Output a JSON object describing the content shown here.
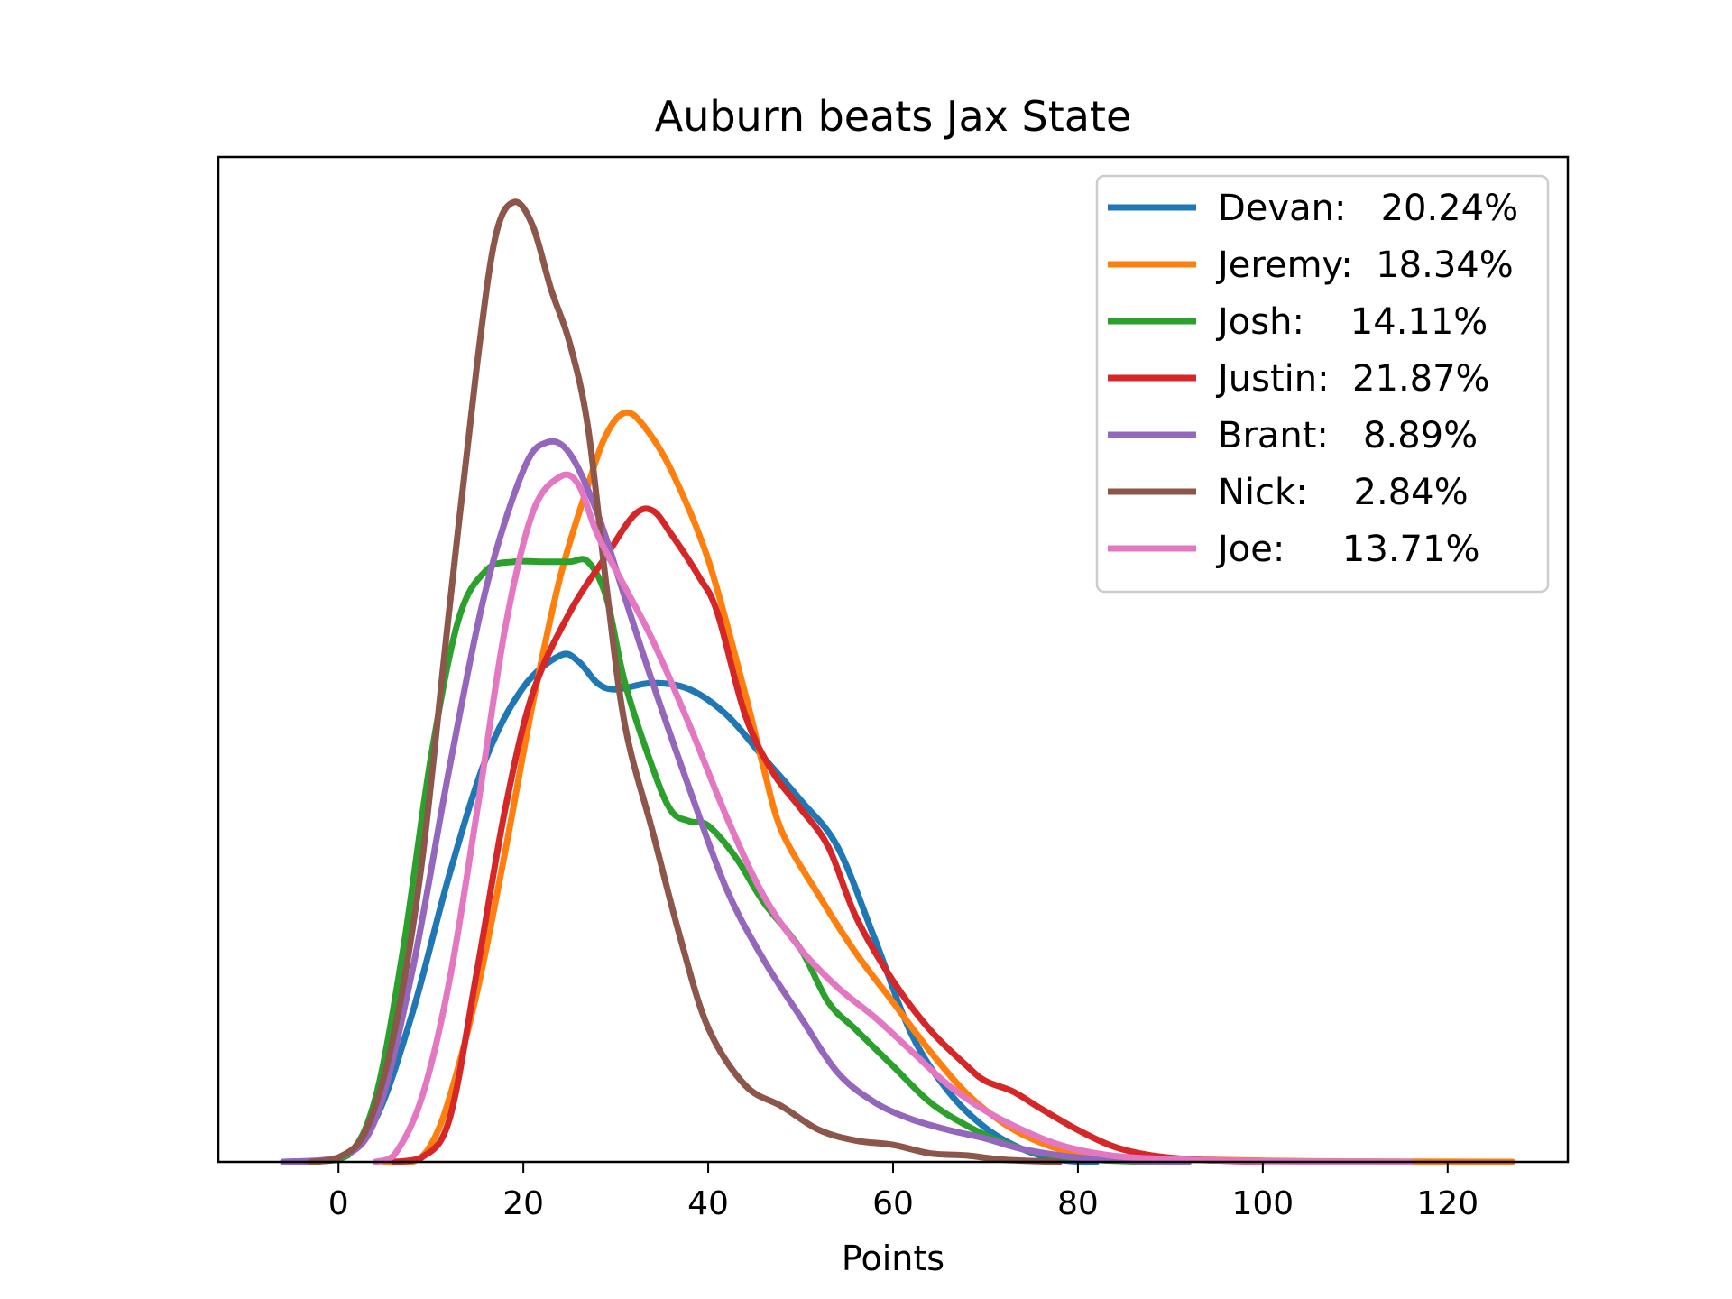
{
  "chart_data": {
    "type": "line",
    "title": "Auburn beats Jax State",
    "xlabel": "Points",
    "ylabel": "",
    "xlim": [
      -13,
      133
    ],
    "ylim": [
      0,
      0.0451
    ],
    "x_ticks": [
      0,
      20,
      40,
      60,
      80,
      100,
      120
    ],
    "y_ticks_visible": false,
    "grid": false,
    "legend_position": "top-right",
    "series": [
      {
        "name": "Devan:   20.24%",
        "color": "#1f77b4",
        "points": [
          [
            -6,
            0
          ],
          [
            0,
            0.0001
          ],
          [
            4,
            0.002
          ],
          [
            8,
            0.007
          ],
          [
            12,
            0.0135
          ],
          [
            16,
            0.019
          ],
          [
            20,
            0.0223
          ],
          [
            24,
            0.0238
          ],
          [
            26,
            0.0235
          ],
          [
            28,
            0.0225
          ],
          [
            30,
            0.0222
          ],
          [
            34,
            0.0225
          ],
          [
            38,
            0.0222
          ],
          [
            42,
            0.021
          ],
          [
            46,
            0.019
          ],
          [
            50,
            0.017
          ],
          [
            54,
            0.0148
          ],
          [
            58,
            0.0105
          ],
          [
            62,
            0.006
          ],
          [
            66,
            0.0033
          ],
          [
            70,
            0.0016
          ],
          [
            74,
            0.0006
          ],
          [
            78,
            0.0001
          ],
          [
            82,
            0
          ]
        ]
      },
      {
        "name": "Jeremy:  18.34%",
        "color": "#ff7f0e",
        "points": [
          [
            5,
            0
          ],
          [
            8,
            0
          ],
          [
            10,
            0.0008
          ],
          [
            12,
            0.003
          ],
          [
            15,
            0.008
          ],
          [
            18,
            0.0145
          ],
          [
            21,
            0.0215
          ],
          [
            24,
            0.0275
          ],
          [
            27,
            0.0318
          ],
          [
            29,
            0.0342
          ],
          [
            31,
            0.0352
          ],
          [
            33,
            0.0346
          ],
          [
            36,
            0.0325
          ],
          [
            40,
            0.0283
          ],
          [
            44,
            0.022
          ],
          [
            46,
            0.0185
          ],
          [
            48,
            0.0155
          ],
          [
            52,
            0.0125
          ],
          [
            56,
            0.0098
          ],
          [
            60,
            0.0075
          ],
          [
            64,
            0.0052
          ],
          [
            68,
            0.0032
          ],
          [
            72,
            0.0018
          ],
          [
            76,
            0.0009
          ],
          [
            80,
            0.0004
          ],
          [
            86,
            0.0002
          ],
          [
            94,
            0.0001
          ],
          [
            105,
            3e-05
          ],
          [
            115,
            1e-05
          ],
          [
            127,
            0
          ]
        ]
      },
      {
        "name": "Josh:    14.11%",
        "color": "#2ca02c",
        "points": [
          [
            -3,
            0
          ],
          [
            1,
            0.0003
          ],
          [
            4,
            0.003
          ],
          [
            7,
            0.01
          ],
          [
            10,
            0.019
          ],
          [
            13,
            0.0255
          ],
          [
            16,
            0.0278
          ],
          [
            19,
            0.0282
          ],
          [
            22,
            0.0282
          ],
          [
            25,
            0.0282
          ],
          [
            27,
            0.0282
          ],
          [
            29,
            0.0265
          ],
          [
            31,
            0.0225
          ],
          [
            34,
            0.0185
          ],
          [
            36,
            0.0165
          ],
          [
            38,
            0.016
          ],
          [
            40,
            0.0158
          ],
          [
            43,
            0.0143
          ],
          [
            46,
            0.0122
          ],
          [
            50,
            0.01
          ],
          [
            53,
            0.0075
          ],
          [
            56,
            0.0062
          ],
          [
            60,
            0.0045
          ],
          [
            64,
            0.0028
          ],
          [
            68,
            0.0017
          ],
          [
            72,
            0.0009
          ],
          [
            76,
            0.0004
          ],
          [
            82,
            0.0001
          ],
          [
            88,
            0
          ]
        ]
      },
      {
        "name": "Justin:  21.87%",
        "color": "#d62728",
        "points": [
          [
            6,
            0
          ],
          [
            9,
            0.0002
          ],
          [
            12,
            0.002
          ],
          [
            15,
            0.009
          ],
          [
            18,
            0.0165
          ],
          [
            21,
            0.022
          ],
          [
            25,
            0.0258
          ],
          [
            29,
            0.0285
          ],
          [
            32,
            0.0304
          ],
          [
            34,
            0.0306
          ],
          [
            36,
            0.0295
          ],
          [
            39,
            0.0275
          ],
          [
            41,
            0.0258
          ],
          [
            44,
            0.021
          ],
          [
            47,
            0.0183
          ],
          [
            50,
            0.0166
          ],
          [
            53,
            0.0148
          ],
          [
            56,
            0.0115
          ],
          [
            60,
            0.0085
          ],
          [
            64,
            0.0062
          ],
          [
            68,
            0.0045
          ],
          [
            70,
            0.0038
          ],
          [
            73,
            0.0033
          ],
          [
            76,
            0.0025
          ],
          [
            80,
            0.0015
          ],
          [
            84,
            0.0007
          ],
          [
            88,
            0.0003
          ],
          [
            93,
            0.0001
          ],
          [
            100,
            0
          ]
        ]
      },
      {
        "name": "Brant:   8.89%",
        "color": "#9467bd",
        "points": [
          [
            -6,
            0
          ],
          [
            0,
            0.0002
          ],
          [
            4,
            0.002
          ],
          [
            8,
            0.009
          ],
          [
            12,
            0.0185
          ],
          [
            16,
            0.027
          ],
          [
            20,
            0.0325
          ],
          [
            22.5,
            0.0338
          ],
          [
            25,
            0.0333
          ],
          [
            28,
            0.0305
          ],
          [
            31,
            0.0265
          ],
          [
            34,
            0.0225
          ],
          [
            38,
            0.0175
          ],
          [
            42,
            0.0128
          ],
          [
            46,
            0.0095
          ],
          [
            50,
            0.0068
          ],
          [
            54,
            0.0042
          ],
          [
            58,
            0.0028
          ],
          [
            62,
            0.002
          ],
          [
            66,
            0.0015
          ],
          [
            70,
            0.0011
          ],
          [
            74,
            0.0006
          ],
          [
            80,
            0.0002
          ],
          [
            86,
            5e-05
          ],
          [
            92,
            0
          ]
        ]
      },
      {
        "name": "Nick:    2.84%",
        "color": "#8c564b",
        "points": [
          [
            -3,
            0
          ],
          [
            0,
            0.0002
          ],
          [
            3,
            0.0015
          ],
          [
            6,
            0.006
          ],
          [
            9,
            0.014
          ],
          [
            12,
            0.026
          ],
          [
            15,
            0.0375
          ],
          [
            17,
            0.0435
          ],
          [
            19,
            0.0451
          ],
          [
            21,
            0.044
          ],
          [
            23,
            0.041
          ],
          [
            25,
            0.0385
          ],
          [
            27,
            0.0345
          ],
          [
            29,
            0.027
          ],
          [
            31,
            0.0205
          ],
          [
            34,
            0.0155
          ],
          [
            37,
            0.0105
          ],
          [
            40,
            0.0063
          ],
          [
            44,
            0.0036
          ],
          [
            48,
            0.0026
          ],
          [
            52,
            0.0015
          ],
          [
            56,
            0.001
          ],
          [
            60,
            0.0008
          ],
          [
            64,
            0.0004
          ],
          [
            68,
            0.0003
          ],
          [
            72,
            0.0001
          ],
          [
            78,
            0
          ]
        ]
      },
      {
        "name": "Joe:     13.71%",
        "color": "#e377c2",
        "points": [
          [
            4,
            0
          ],
          [
            6,
            0.0003
          ],
          [
            9,
            0.003
          ],
          [
            12,
            0.0085
          ],
          [
            15,
            0.0165
          ],
          [
            18,
            0.025
          ],
          [
            21,
            0.0305
          ],
          [
            24,
            0.0322
          ],
          [
            26,
            0.0318
          ],
          [
            28,
            0.0295
          ],
          [
            31,
            0.027
          ],
          [
            34,
            0.0245
          ],
          [
            38,
            0.0205
          ],
          [
            42,
            0.0162
          ],
          [
            46,
            0.0125
          ],
          [
            50,
            0.01
          ],
          [
            54,
            0.0082
          ],
          [
            58,
            0.0068
          ],
          [
            62,
            0.0052
          ],
          [
            66,
            0.0036
          ],
          [
            70,
            0.0024
          ],
          [
            74,
            0.0015
          ],
          [
            78,
            0.0008
          ],
          [
            82,
            0.0004
          ],
          [
            86,
            0.0002
          ],
          [
            92,
            0.0001
          ],
          [
            100,
            3e-05
          ],
          [
            116,
            0
          ]
        ]
      }
    ]
  }
}
